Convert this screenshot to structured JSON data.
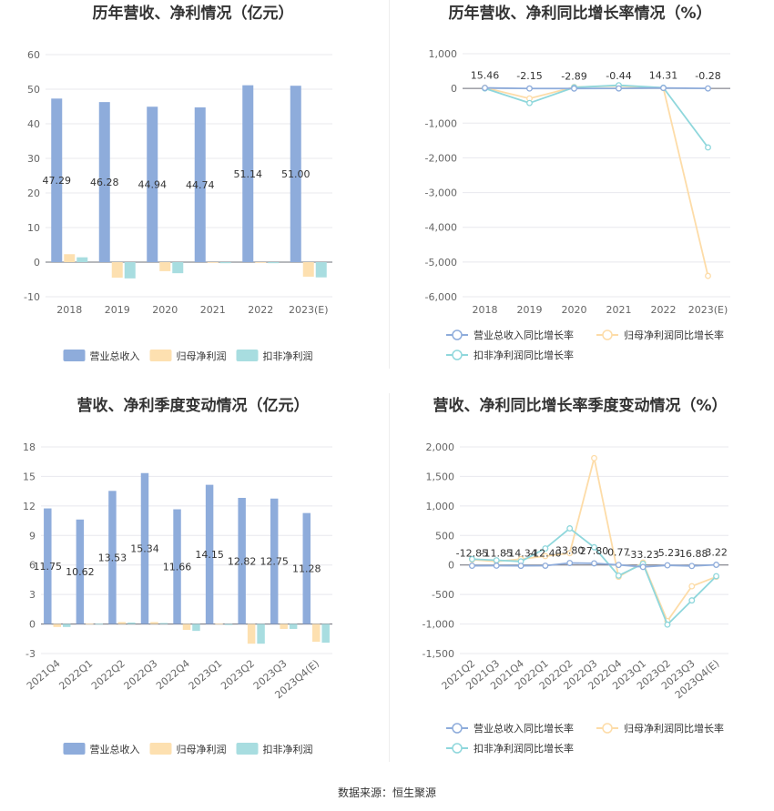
{
  "colors": {
    "revenue_bar": "#8eacdb",
    "parent_profit_bar": "#fde0b0",
    "deducted_profit_bar": "#a8dde0",
    "revenue_line": "#8eacdb",
    "parent_profit_line": "#fddca8",
    "deducted_profit_line": "#8fd7dc"
  },
  "source": "数据来源：恒生聚源",
  "chart_data": [
    {
      "id": "annual_amount",
      "type": "bar",
      "title": "历年营收、净利情况（亿元）",
      "categories": [
        "2018",
        "2019",
        "2020",
        "2021",
        "2022",
        "2023(E)"
      ],
      "ylim": [
        -10,
        60
      ],
      "yticks": [
        -10,
        0,
        10,
        20,
        30,
        40,
        50,
        60
      ],
      "grid": true,
      "legend": "bottom",
      "series": [
        {
          "name": "营业总收入",
          "values": [
            47.29,
            46.28,
            44.94,
            44.74,
            51.14,
            51.0
          ],
          "labels": [
            "47.29",
            "46.28",
            "44.94",
            "44.74",
            "51.14",
            "51.00"
          ]
        },
        {
          "name": "归母净利润",
          "values": [
            2.3,
            -4.5,
            -2.6,
            -0.2,
            -0.2,
            -4.2
          ]
        },
        {
          "name": "扣非净利润",
          "values": [
            1.4,
            -4.7,
            -3.2,
            -0.3,
            -0.3,
            -4.4
          ]
        }
      ]
    },
    {
      "id": "annual_growth",
      "type": "line",
      "title": "历年营收、净利同比增长率情况（%）",
      "categories": [
        "2018",
        "2019",
        "2020",
        "2021",
        "2022",
        "2023(E)"
      ],
      "ylim": [
        -6000,
        1000
      ],
      "yticks": [
        -6000,
        -5000,
        -4000,
        -3000,
        -2000,
        -1000,
        0,
        1000
      ],
      "ytick_labels": [
        "-6,000",
        "-5,000",
        "-4,000",
        "-3,000",
        "-2,000",
        "-1,000",
        "0",
        "1,000"
      ],
      "grid": true,
      "legend": "bottom",
      "series": [
        {
          "name": "营业总收入同比增长率",
          "values": [
            15.46,
            -2.15,
            -2.89,
            -0.44,
            14.31,
            -0.28
          ],
          "labels": [
            "15.46",
            "-2.15",
            "-2.89",
            "-0.44",
            "14.31",
            "-0.28"
          ]
        },
        {
          "name": "归母净利润同比增长率",
          "values": [
            20,
            -290,
            40,
            70,
            10,
            -5400
          ]
        },
        {
          "name": "扣非净利润同比增长率",
          "values": [
            0,
            -420,
            30,
            90,
            20,
            -1700
          ]
        }
      ]
    },
    {
      "id": "quarterly_amount",
      "type": "bar",
      "title": "营收、净利季度变动情况（亿元）",
      "categories": [
        "2021Q4",
        "2022Q1",
        "2022Q2",
        "2022Q3",
        "2022Q4",
        "2023Q1",
        "2023Q2",
        "2023Q3",
        "2023Q4(E)"
      ],
      "ylim": [
        -3,
        18
      ],
      "yticks": [
        -3,
        0,
        3,
        6,
        9,
        12,
        15,
        18
      ],
      "grid": true,
      "legend": "bottom",
      "series": [
        {
          "name": "营业总收入",
          "values": [
            11.75,
            10.62,
            13.53,
            15.34,
            11.66,
            14.15,
            12.82,
            12.75,
            11.28
          ],
          "labels": [
            "11.75",
            "10.62",
            "13.53",
            "15.34",
            "11.66",
            "14.15",
            "12.82",
            "12.75",
            "11.28"
          ]
        },
        {
          "name": "归母净利润",
          "values": [
            -0.3,
            0.05,
            0.2,
            0.2,
            -0.6,
            0.05,
            -2.0,
            -0.5,
            -1.8
          ]
        },
        {
          "name": "扣非净利润",
          "values": [
            -0.3,
            0.02,
            0.15,
            0.1,
            -0.7,
            -0.1,
            -2.0,
            -0.5,
            -1.9
          ]
        }
      ]
    },
    {
      "id": "quarterly_growth",
      "type": "line",
      "title": "营收、净利同比增长率季度变动情况（%）",
      "categories": [
        "2021Q2",
        "2021Q3",
        "2021Q4",
        "2022Q1",
        "2022Q2",
        "2022Q3",
        "2022Q4",
        "2023Q1",
        "2023Q2",
        "2023Q3",
        "2023Q4(E)"
      ],
      "ylim": [
        -1500,
        2000
      ],
      "yticks": [
        -1500,
        -1000,
        -500,
        0,
        500,
        1000,
        1500,
        2000
      ],
      "ytick_labels": [
        "-1,500",
        "-1,000",
        "-500",
        "0",
        "500",
        "1,000",
        "1,500",
        "2,000"
      ],
      "grid": true,
      "legend": "bottom",
      "series": [
        {
          "name": "营业总收入同比增长率",
          "values": [
            -12.85,
            -11.85,
            -14.34,
            -12.4,
            33.8,
            27.8,
            0.77,
            -33.23,
            -5.23,
            -16.88,
            3.22
          ],
          "labels": [
            "-12.85",
            "-11.85",
            "-14.34",
            "-12.40",
            "33.80",
            "27.80",
            "0.77",
            "-33.23",
            "-5.23",
            "-16.88",
            "3.22"
          ]
        },
        {
          "name": "归母净利润同比增长率",
          "values": [
            90,
            60,
            100,
            150,
            200,
            1810,
            -200,
            40,
            -950,
            -360,
            -200
          ]
        },
        {
          "name": "扣非净利润同比增长率",
          "values": [
            100,
            80,
            60,
            280,
            620,
            300,
            -180,
            20,
            -1010,
            -600,
            -190
          ]
        }
      ]
    }
  ]
}
